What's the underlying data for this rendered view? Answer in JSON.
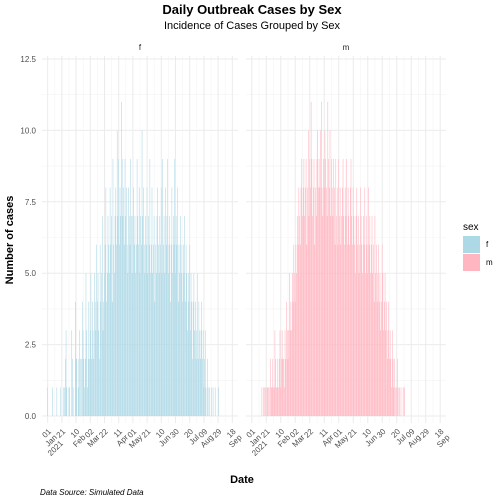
{
  "chart_data": {
    "type": "bar",
    "title": "Daily Outbreak Cases by Sex",
    "subtitle": "Incidence of Cases Grouped by Sex",
    "xlabel": "Date",
    "ylabel": "Number of cases",
    "ylim": [
      0,
      12.5
    ],
    "y_ticks": [
      "0.0",
      "2.5",
      "5.0",
      "7.5",
      "10.0",
      "12.5"
    ],
    "y_tick_values": [
      0,
      2.5,
      5,
      7.5,
      10,
      12.5
    ],
    "x_tick_labels": [
      "01\nJan\n2021",
      "21",
      "10\nFeb",
      "02\nMar",
      "22",
      "11\nApr",
      "01\nMay",
      "21",
      "10\nJun",
      "30",
      "20\nJul",
      "09\nAug",
      "29",
      "18\nSep"
    ],
    "x_tick_days": [
      0,
      20,
      40,
      60,
      80,
      100,
      120,
      140,
      160,
      180,
      200,
      220,
      240,
      260
    ],
    "x_range_days": [
      -8,
      268
    ],
    "legend": {
      "title": "sex",
      "position": "right",
      "items": [
        {
          "label": "f",
          "color": "#add8e6"
        },
        {
          "label": "m",
          "color": "#ffb6c1"
        }
      ]
    },
    "grid": true,
    "series": [
      {
        "name": "f",
        "facet_label": "f",
        "color": "#add8e6",
        "start_day": 0,
        "values": [
          1,
          0,
          0,
          0,
          0,
          0,
          0,
          1,
          0,
          0,
          0,
          0,
          0,
          1,
          0,
          0,
          0,
          0,
          1,
          0,
          0,
          0,
          1,
          0,
          1,
          2,
          3,
          1,
          0,
          0,
          1,
          1,
          0,
          0,
          3,
          2,
          1,
          0,
          0,
          4,
          2,
          2,
          0,
          1,
          2,
          3,
          2,
          0,
          2,
          4,
          3,
          2,
          1,
          2,
          5,
          3,
          1,
          2,
          4,
          2,
          3,
          5,
          2,
          4,
          3,
          2,
          5,
          4,
          3,
          6,
          4,
          5,
          3,
          2,
          6,
          4,
          5,
          7,
          3,
          4,
          5,
          6,
          8,
          4,
          5,
          7,
          6,
          5,
          8,
          6,
          7,
          4,
          9,
          6,
          5,
          7,
          8,
          6,
          10,
          7,
          9,
          6,
          8,
          7,
          11,
          9,
          7,
          8,
          6,
          9,
          7,
          8,
          6,
          5,
          8,
          7,
          6,
          9,
          7,
          5,
          7,
          8,
          6,
          7,
          5,
          6,
          9,
          7,
          6,
          8,
          5,
          7,
          6,
          10,
          7,
          8,
          6,
          5,
          7,
          6,
          8,
          5,
          7,
          6,
          9,
          5,
          6,
          8,
          5,
          6,
          7,
          4,
          6,
          5,
          7,
          8,
          6,
          5,
          7,
          6,
          8,
          5,
          9,
          6,
          7,
          5,
          8,
          6,
          7,
          9,
          5,
          6,
          7,
          4,
          6,
          8,
          5,
          7,
          6,
          9,
          5,
          7,
          6,
          8,
          4,
          6,
          5,
          7,
          6,
          5,
          4,
          6,
          5,
          7,
          4,
          6,
          5,
          3,
          5,
          4,
          6,
          3,
          5,
          4,
          2,
          4,
          5,
          3,
          4,
          2,
          3,
          5,
          2,
          4,
          3,
          2,
          3,
          4,
          2,
          3,
          1,
          2,
          3,
          1,
          0,
          2,
          1,
          0,
          1,
          0,
          0,
          1,
          0,
          1,
          0,
          0,
          1,
          0,
          0,
          0,
          0,
          1
        ]
      },
      {
        "name": "m",
        "facet_label": "m",
        "color": "#ffb6c1",
        "start_day": 0,
        "values": [
          0,
          0,
          0,
          0,
          0,
          0,
          0,
          0,
          0,
          0,
          0,
          0,
          0,
          0,
          1,
          0,
          1,
          0,
          1,
          1,
          0,
          1,
          1,
          1,
          0,
          1,
          2,
          1,
          1,
          2,
          1,
          1,
          3,
          2,
          1,
          1,
          2,
          1,
          2,
          3,
          1,
          2,
          3,
          2,
          2,
          1,
          3,
          2,
          4,
          3,
          2,
          3,
          5,
          3,
          4,
          3,
          5,
          4,
          6,
          5,
          4,
          6,
          5,
          7,
          6,
          8,
          7,
          6,
          8,
          9,
          7,
          8,
          9,
          7,
          8,
          9,
          6,
          8,
          10,
          7,
          9,
          8,
          11,
          9,
          7,
          8,
          9,
          6,
          8,
          7,
          9,
          10,
          8,
          9,
          8,
          10,
          11,
          8,
          7,
          9,
          8,
          10,
          9,
          8,
          7,
          11,
          9,
          8,
          10,
          7,
          9,
          8,
          7,
          9,
          8,
          6,
          9,
          7,
          8,
          6,
          9,
          7,
          8,
          6,
          7,
          8,
          9,
          7,
          6,
          8,
          7,
          9,
          6,
          8,
          7,
          6,
          8,
          9,
          7,
          6,
          8,
          7,
          6,
          5,
          7,
          8,
          6,
          7,
          5,
          6,
          8,
          7,
          6,
          5,
          7,
          6,
          8,
          5,
          7,
          6,
          5,
          8,
          6,
          7,
          5,
          6,
          7,
          5,
          6,
          4,
          7,
          5,
          6,
          4,
          5,
          6,
          4,
          5,
          3,
          4,
          6,
          5,
          3,
          4,
          5,
          3,
          4,
          2,
          3,
          4,
          2,
          3,
          2,
          1,
          3,
          2,
          1,
          2,
          1,
          0,
          1,
          2,
          1,
          0,
          1,
          0,
          1,
          0,
          0,
          1,
          0,
          1
        ]
      }
    ],
    "caption": "Data Source: Simulated Data"
  }
}
